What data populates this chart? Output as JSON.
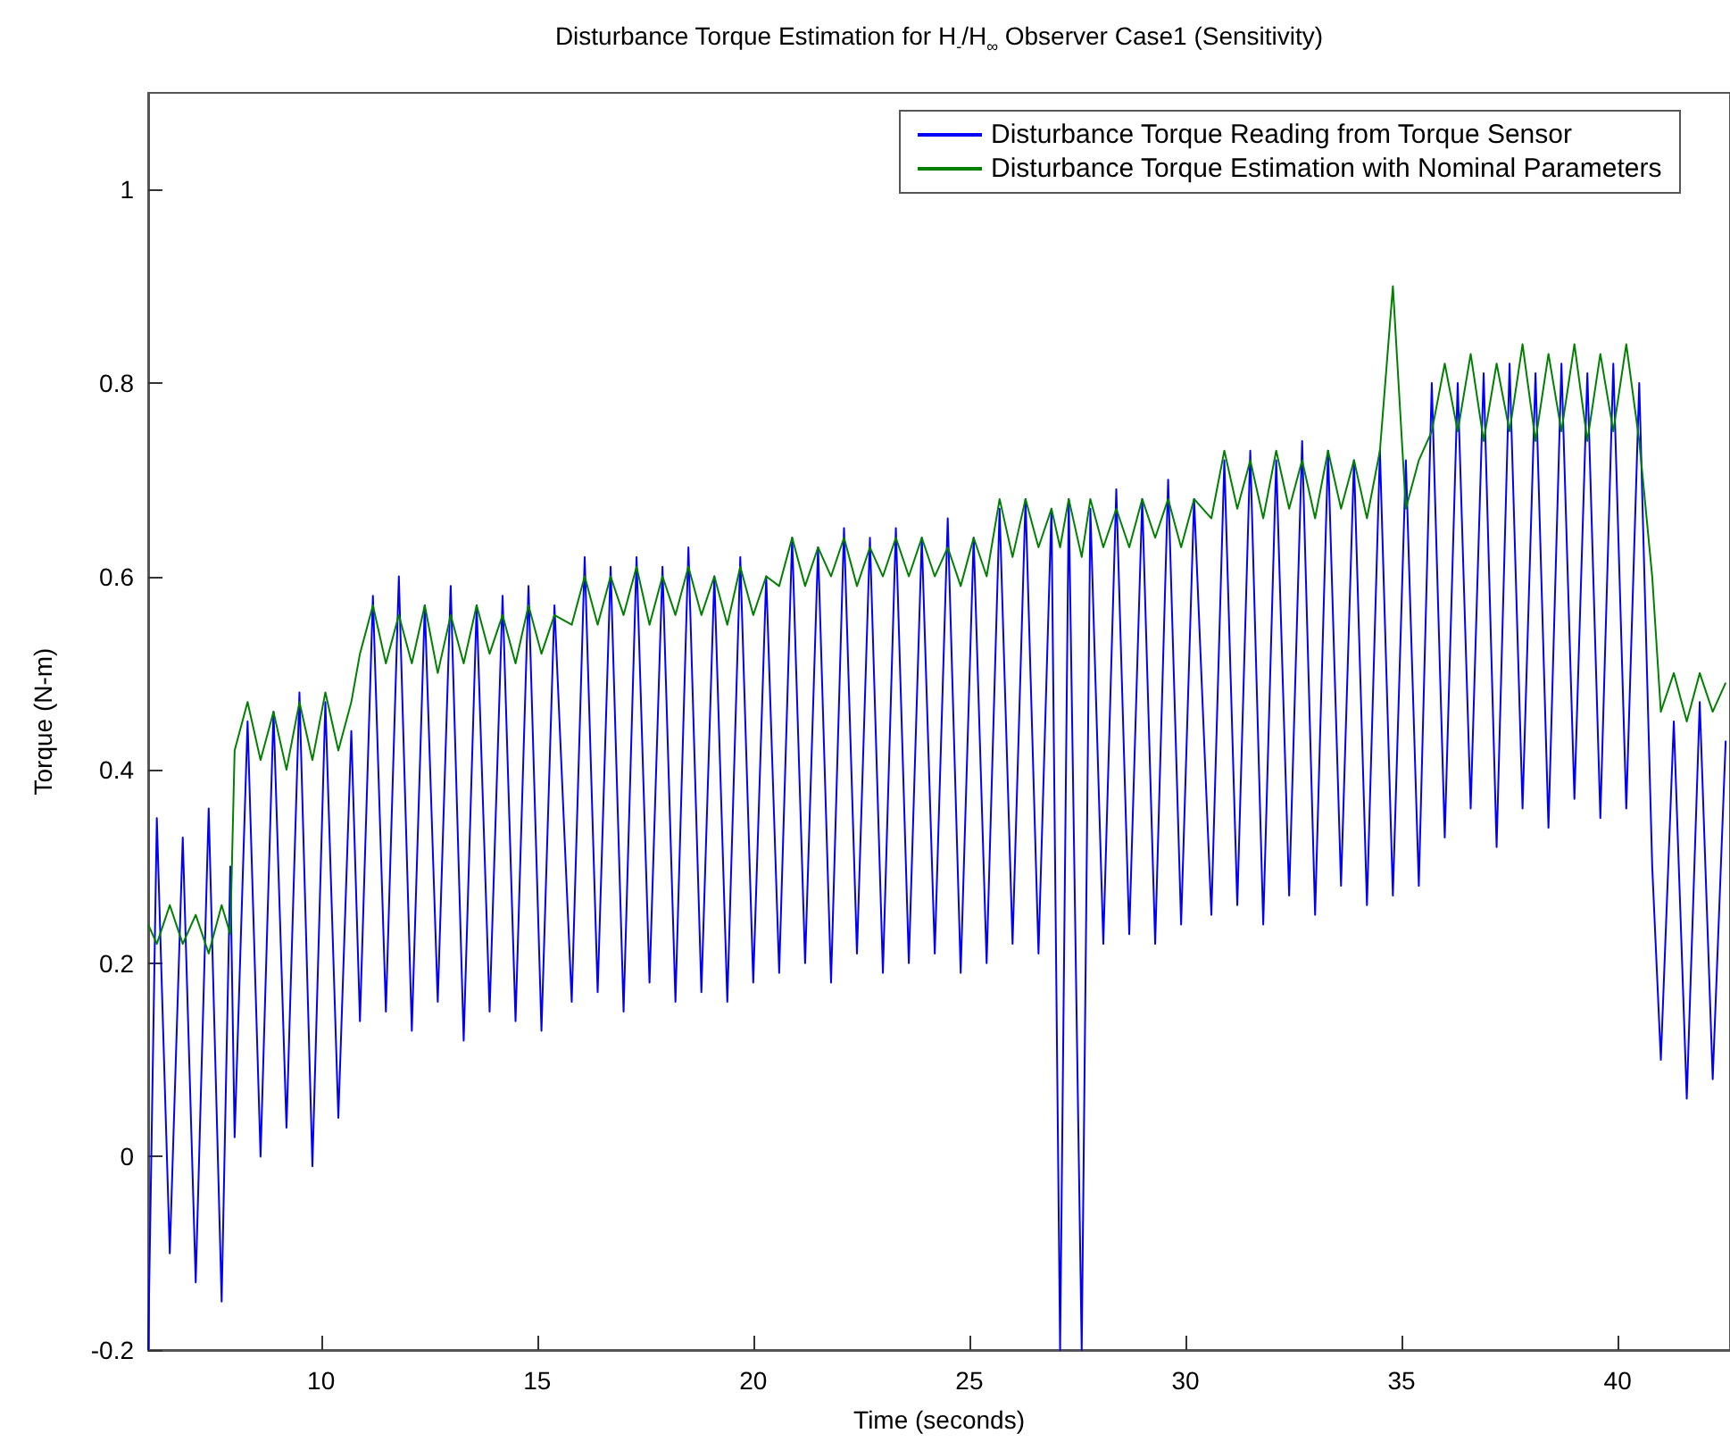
{
  "chart_data": {
    "type": "line",
    "title": "Disturbance Torque Estimation for H$_{-}$/H$_{∞}$ Observer Case1 (Sensitivity)",
    "xlabel": "Time (seconds)",
    "ylabel": "Torque (N-m)",
    "x": [
      6.0,
      6.2,
      6.5,
      6.8,
      7.1,
      7.4,
      7.7,
      7.9,
      8.0,
      8.3,
      8.6,
      8.9,
      9.2,
      9.5,
      9.8,
      10.1,
      10.4,
      10.7,
      10.9,
      11.2,
      11.5,
      11.8,
      12.1,
      12.4,
      12.7,
      13.0,
      13.3,
      13.6,
      13.9,
      14.2,
      14.5,
      14.8,
      15.1,
      15.4,
      15.8,
      16.1,
      16.4,
      16.7,
      17.0,
      17.3,
      17.6,
      17.9,
      18.2,
      18.5,
      18.8,
      19.1,
      19.4,
      19.7,
      20.0,
      20.3,
      20.6,
      20.9,
      21.2,
      21.5,
      21.8,
      22.1,
      22.4,
      22.7,
      23.0,
      23.3,
      23.6,
      23.9,
      24.2,
      24.5,
      24.8,
      25.1,
      25.4,
      25.7,
      26.0,
      26.3,
      26.6,
      26.9,
      27.1,
      27.3,
      27.6,
      27.8,
      28.1,
      28.4,
      28.7,
      29.0,
      29.3,
      29.6,
      29.9,
      30.2,
      30.6,
      30.9,
      31.2,
      31.5,
      31.8,
      32.1,
      32.4,
      32.7,
      33.0,
      33.3,
      33.6,
      33.9,
      34.2,
      34.5,
      34.8,
      35.1,
      35.4,
      35.7,
      36.0,
      36.3,
      36.6,
      36.9,
      37.2,
      37.5,
      37.8,
      38.1,
      38.4,
      38.7,
      39.0,
      39.3,
      39.6,
      39.9,
      40.2,
      40.5,
      40.8,
      41.0,
      41.3,
      41.6,
      41.9,
      42.2,
      42.5
    ],
    "series": [
      {
        "name": "Disturbance Torque Reading from Torque Sensor",
        "color": "#0000ff",
        "values": [
          -0.2,
          0.35,
          -0.1,
          0.33,
          -0.13,
          0.36,
          -0.15,
          0.3,
          0.02,
          0.45,
          0.0,
          0.46,
          0.03,
          0.48,
          -0.01,
          0.47,
          0.04,
          0.44,
          0.14,
          0.58,
          0.15,
          0.6,
          0.13,
          0.57,
          0.16,
          0.59,
          0.12,
          0.57,
          0.15,
          0.58,
          0.14,
          0.59,
          0.13,
          0.57,
          0.16,
          0.62,
          0.17,
          0.61,
          0.15,
          0.62,
          0.18,
          0.61,
          0.16,
          0.63,
          0.17,
          0.6,
          0.16,
          0.62,
          0.18,
          0.6,
          0.19,
          0.64,
          0.2,
          0.63,
          0.18,
          0.65,
          0.21,
          0.64,
          0.19,
          0.65,
          0.2,
          0.64,
          0.21,
          0.66,
          0.19,
          0.64,
          0.2,
          0.67,
          0.22,
          0.68,
          0.21,
          0.67,
          -0.2,
          0.68,
          -0.2,
          0.67,
          0.22,
          0.69,
          0.23,
          0.68,
          0.22,
          0.7,
          0.24,
          0.68,
          0.25,
          0.72,
          0.26,
          0.73,
          0.24,
          0.72,
          0.27,
          0.74,
          0.25,
          0.73,
          0.28,
          0.72,
          0.26,
          0.73,
          0.27,
          0.72,
          0.28,
          0.8,
          0.33,
          0.8,
          0.36,
          0.81,
          0.32,
          0.82,
          0.36,
          0.81,
          0.34,
          0.82,
          0.37,
          0.81,
          0.35,
          0.82,
          0.36,
          0.8,
          0.3,
          0.1,
          0.45,
          0.06,
          0.47,
          0.08,
          0.43
        ]
      },
      {
        "name": "Disturbance Torque Estimation with Nominal Parameters",
        "color": "#008000",
        "values": [
          0.24,
          0.22,
          0.26,
          0.22,
          0.25,
          0.21,
          0.26,
          0.23,
          0.42,
          0.47,
          0.41,
          0.46,
          0.4,
          0.47,
          0.41,
          0.48,
          0.42,
          0.47,
          0.52,
          0.57,
          0.51,
          0.56,
          0.51,
          0.57,
          0.5,
          0.56,
          0.51,
          0.57,
          0.52,
          0.56,
          0.51,
          0.57,
          0.52,
          0.56,
          0.55,
          0.6,
          0.55,
          0.6,
          0.56,
          0.61,
          0.55,
          0.6,
          0.56,
          0.61,
          0.56,
          0.6,
          0.55,
          0.61,
          0.56,
          0.6,
          0.59,
          0.64,
          0.59,
          0.63,
          0.6,
          0.64,
          0.59,
          0.63,
          0.6,
          0.64,
          0.6,
          0.64,
          0.6,
          0.63,
          0.59,
          0.64,
          0.6,
          0.68,
          0.62,
          0.68,
          0.63,
          0.67,
          0.63,
          0.68,
          0.62,
          0.68,
          0.63,
          0.67,
          0.63,
          0.68,
          0.64,
          0.68,
          0.63,
          0.68,
          0.66,
          0.73,
          0.67,
          0.72,
          0.66,
          0.73,
          0.67,
          0.72,
          0.66,
          0.73,
          0.67,
          0.72,
          0.66,
          0.73,
          0.9,
          0.67,
          0.72,
          0.75,
          0.82,
          0.75,
          0.83,
          0.74,
          0.82,
          0.75,
          0.84,
          0.74,
          0.83,
          0.75,
          0.84,
          0.74,
          0.83,
          0.75,
          0.84,
          0.74,
          0.6,
          0.46,
          0.5,
          0.45,
          0.5,
          0.46,
          0.49
        ]
      }
    ],
    "xlim": [
      6,
      42.6
    ],
    "xticks": [
      10,
      15,
      20,
      25,
      30,
      35,
      40
    ],
    "ylim": [
      -0.2,
      1.1
    ],
    "yticks": [
      -0.2,
      0,
      0.2,
      0.4,
      0.6,
      0.8,
      1
    ],
    "grid": false,
    "legend": "top right"
  }
}
